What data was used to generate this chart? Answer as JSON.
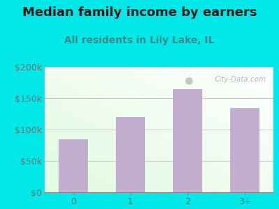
{
  "title": "Median family income by earners",
  "subtitle": "All residents in Lily Lake, IL",
  "categories": [
    "0",
    "1",
    "2",
    "3+"
  ],
  "values": [
    85000,
    120000,
    165000,
    135000
  ],
  "bar_color": "#c2afd0",
  "background_outer": "#00e8e8",
  "title_color": "#1a1a1a",
  "subtitle_color": "#3a8a8a",
  "tick_color": "#5a7a7a",
  "ylim": [
    0,
    200000
  ],
  "yticks": [
    0,
    50000,
    100000,
    150000,
    200000
  ],
  "ytick_labels": [
    "$0",
    "$50k",
    "$100k",
    "$150k",
    "$200k"
  ],
  "watermark": "City-Data.com",
  "title_fontsize": 13,
  "subtitle_fontsize": 10,
  "tick_fontsize": 9
}
